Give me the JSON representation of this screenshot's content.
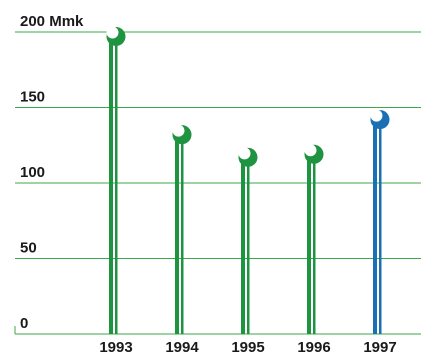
{
  "chart_data": {
    "type": "bar",
    "title": "",
    "xlabel": "",
    "ylabel": "",
    "y_unit": "Mmk",
    "categories": [
      "1993",
      "1994",
      "1995",
      "1996",
      "1997"
    ],
    "values": [
      197,
      132,
      117,
      119,
      142
    ],
    "ylim": [
      0,
      200
    ],
    "y_ticks": [
      0,
      50,
      100,
      150,
      200
    ],
    "y_tick_labels": [
      "0",
      "50",
      "100",
      "150",
      "200 Mmk"
    ],
    "grid": true,
    "legend": "none",
    "colors": {
      "grid": "#3aa84a",
      "bar": "#1e9440",
      "highlight": "#1a6fb5",
      "text": "#1a1a1a"
    },
    "highlight_index": 4,
    "mark_style": "lollipop"
  }
}
